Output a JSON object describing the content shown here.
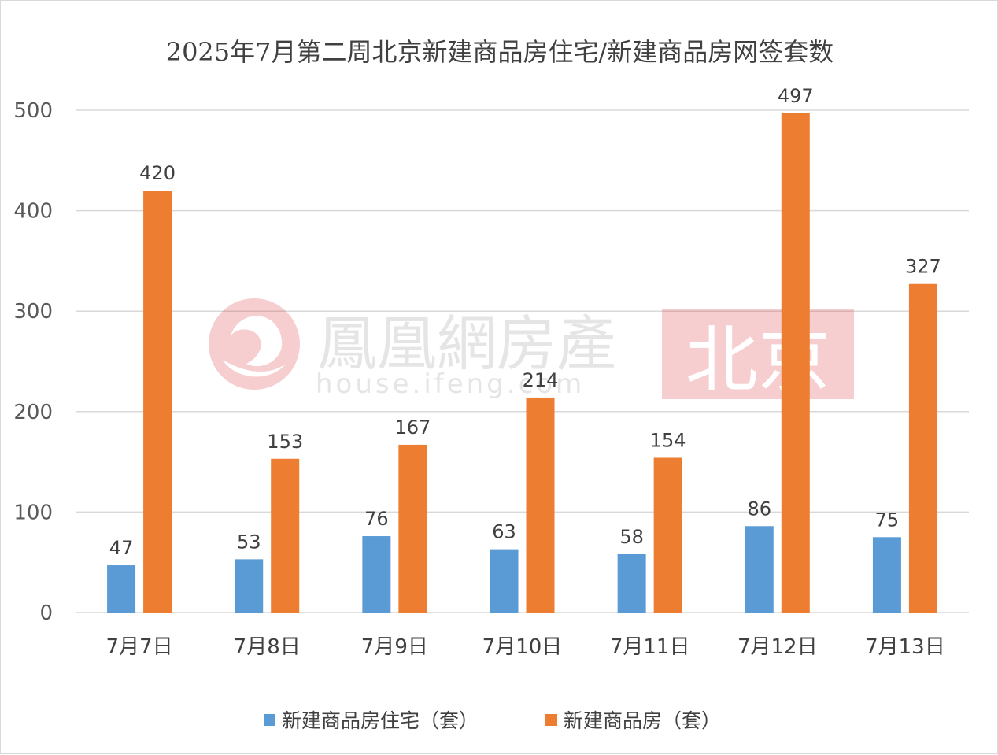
{
  "chart_data": {
    "type": "bar",
    "title": "2025年7月第二周北京新建商品房住宅/新建商品房网签套数",
    "categories": [
      "7月7日",
      "7月8日",
      "7月9日",
      "7月10日",
      "7月11日",
      "7月12日",
      "7月13日"
    ],
    "series": [
      {
        "name": "新建商品房住宅（套）",
        "color": "#5b9bd5",
        "values": [
          47,
          53,
          76,
          63,
          58,
          86,
          75
        ]
      },
      {
        "name": "新建商品房（套）",
        "color": "#ed7d31",
        "values": [
          420,
          153,
          167,
          214,
          154,
          497,
          327
        ]
      }
    ],
    "ylim": [
      0,
      500
    ],
    "yticks": [
      0,
      100,
      200,
      300,
      400,
      500
    ],
    "grid": true,
    "legend_position": "bottom",
    "data_labels": true
  },
  "watermark": {
    "brand": "鳳凰網房產",
    "url": "house.ifeng.com",
    "city": "北京",
    "icon": "phoenix-logo-icon"
  }
}
